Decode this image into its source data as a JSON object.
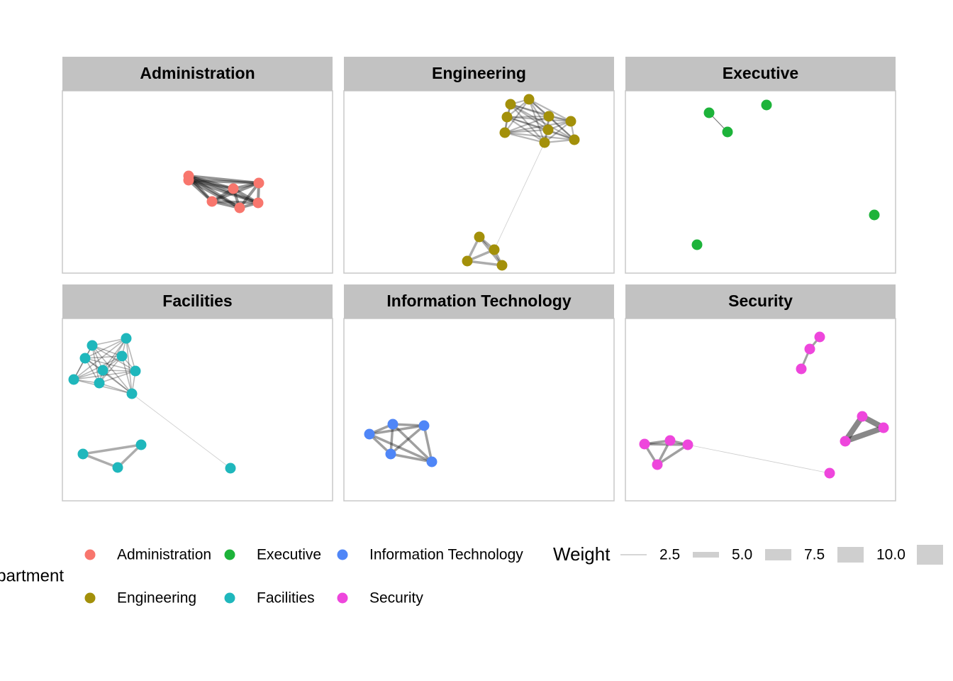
{
  "panels": [
    {
      "title": "Administration",
      "color": "#F8766D"
    },
    {
      "title": "Engineering",
      "color": "#A3900A"
    },
    {
      "title": "Executive",
      "color": "#1DB33A"
    },
    {
      "title": "Facilities",
      "color": "#1FB7BC"
    },
    {
      "title": "Information Technology",
      "color": "#4F86F7"
    },
    {
      "title": "Security",
      "color": "#EE46DC"
    }
  ],
  "legend": {
    "title": "Department"
  },
  "weight_legend": {
    "title": "Weight",
    "labels": [
      "2.5",
      "5.0",
      "7.5",
      "10.0"
    ]
  }
}
